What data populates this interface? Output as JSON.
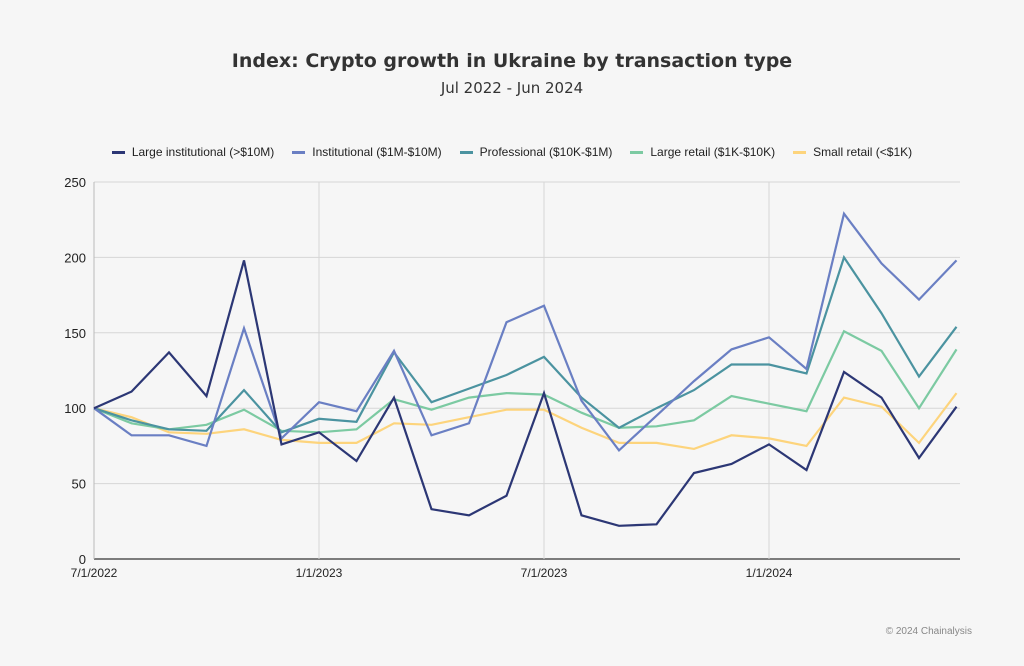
{
  "chart_data": {
    "type": "line",
    "title": "Index: Crypto growth in Ukraine by transaction type",
    "subtitle": "Jul 2022 - Jun 2024",
    "xlabel": "",
    "ylabel": "",
    "x": [
      "7/1/2022",
      "8/1/2022",
      "9/1/2022",
      "10/1/2022",
      "11/1/2022",
      "12/1/2022",
      "1/1/2023",
      "2/1/2023",
      "3/1/2023",
      "4/1/2023",
      "5/1/2023",
      "6/1/2023",
      "7/1/2023",
      "8/1/2023",
      "9/1/2023",
      "10/1/2023",
      "11/1/2023",
      "12/1/2023",
      "1/1/2024",
      "2/1/2024",
      "3/1/2024",
      "4/1/2024",
      "5/1/2024",
      "6/1/2024"
    ],
    "x_tick_labels": [
      "7/1/2022",
      "1/1/2023",
      "7/1/2023",
      "1/1/2024"
    ],
    "y_tick_labels": [
      "0",
      "50",
      "100",
      "150",
      "200",
      "250"
    ],
    "ylim": [
      0,
      250
    ],
    "grid": true,
    "legend_position": "top",
    "series": [
      {
        "name": "Large institutional (>$10M)",
        "color": "#2c3775",
        "values": [
          100,
          111,
          137,
          108,
          198,
          76,
          84,
          65,
          107,
          33,
          29,
          42,
          110,
          29,
          22,
          23,
          57,
          63,
          76,
          59,
          124,
          107,
          67,
          101
        ]
      },
      {
        "name": "Institutional ($1M-$10M)",
        "color": "#6a7fc3",
        "values": [
          100,
          82,
          82,
          75,
          153,
          80,
          104,
          98,
          138,
          82,
          90,
          157,
          168,
          105,
          72,
          95,
          118,
          139,
          147,
          126,
          229,
          196,
          172,
          198
        ]
      },
      {
        "name": "Professional ($10K-$1M)",
        "color": "#4b93a0",
        "values": [
          100,
          92,
          86,
          85,
          112,
          84,
          93,
          91,
          137,
          104,
          113,
          122,
          134,
          107,
          87,
          100,
          112,
          129,
          129,
          123,
          200,
          163,
          121,
          154
        ]
      },
      {
        "name": "Large retail ($1K-$10K)",
        "color": "#7ccaa2",
        "values": [
          100,
          90,
          86,
          89,
          99,
          85,
          84,
          86,
          106,
          99,
          107,
          110,
          109,
          97,
          87,
          88,
          92,
          108,
          103,
          98,
          151,
          138,
          100,
          139
        ]
      },
      {
        "name": "Small retail (<$1K)",
        "color": "#fdd47c",
        "values": [
          100,
          94,
          84,
          83,
          86,
          79,
          77,
          77,
          90,
          89,
          94,
          99,
          99,
          87,
          77,
          77,
          73,
          82,
          80,
          75,
          107,
          101,
          77,
          110
        ]
      }
    ]
  },
  "footer": {
    "copyright": "© 2024 Chainalysis"
  }
}
